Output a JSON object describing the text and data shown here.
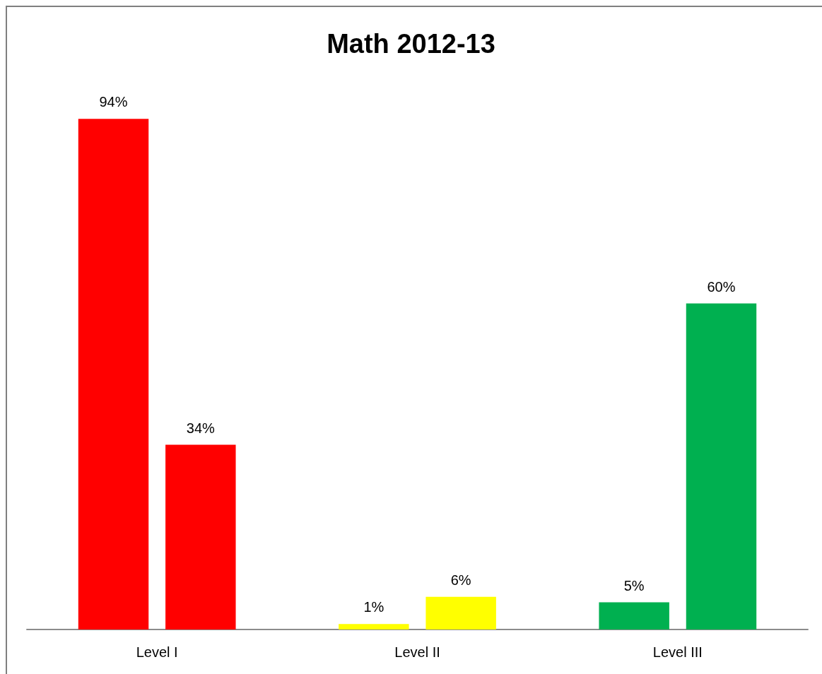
{
  "chart_data": {
    "type": "bar",
    "title": "Math 2012-13",
    "categories": [
      "Level I",
      "Level II",
      "Level III"
    ],
    "series": [
      {
        "values": [
          94,
          1,
          5
        ],
        "colors": [
          "#ff0000",
          "#ffff00",
          "#00b050"
        ],
        "value_labels": [
          "94%",
          "1%",
          "5%"
        ]
      },
      {
        "values": [
          34,
          6,
          60
        ],
        "colors": [
          "#ff0000",
          "#ffff00",
          "#00b050"
        ],
        "value_labels": [
          "34%",
          "6%",
          "60%"
        ]
      }
    ],
    "tick_labels": "x"
  }
}
